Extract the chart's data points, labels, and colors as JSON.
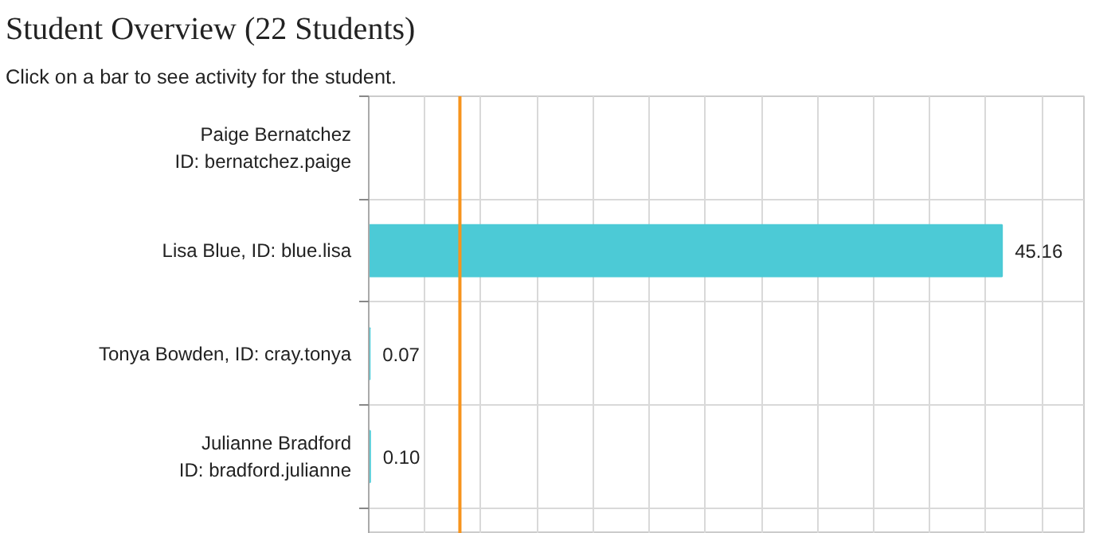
{
  "chart_data": {
    "type": "bar",
    "orientation": "horizontal",
    "title": "Student Overview (22 Students)",
    "subtitle": "Click on a bar to see activity for the student.",
    "categories": [
      "Paige Bernatchez\nID: bernatchez.paige",
      "Lisa Blue, ID: blue.lisa",
      "Tonya Bowden, ID: cray.tonya",
      "Julianne Bradford\nID: bradford.julianne"
    ],
    "values": [
      0,
      45.16,
      0.07,
      0.1
    ],
    "value_labels": [
      null,
      "45.16",
      "0.07",
      "0.10"
    ],
    "color": "#4ccad6",
    "xlim": [
      0,
      51
    ],
    "xticks": [
      {
        "value": 0,
        "label": null
      },
      {
        "value": 4,
        "label": null
      },
      {
        "value": 8,
        "label": null
      },
      {
        "value": 12,
        "label": null
      },
      {
        "value": 16,
        "label": null
      },
      {
        "value": 20,
        "label": null
      },
      {
        "value": 24,
        "label": null
      },
      {
        "value": 28,
        "label": null
      },
      {
        "value": 32,
        "label": null
      },
      {
        "value": 36,
        "label": null
      },
      {
        "value": 40,
        "label": null
      },
      {
        "value": 44,
        "label": null
      },
      {
        "value": 48,
        "label": null
      }
    ],
    "tick_labels": "y",
    "grid": true,
    "ref_lines": [
      {
        "axis": "x",
        "value": 6.5,
        "label": null,
        "color": "#f7941d"
      }
    ]
  }
}
